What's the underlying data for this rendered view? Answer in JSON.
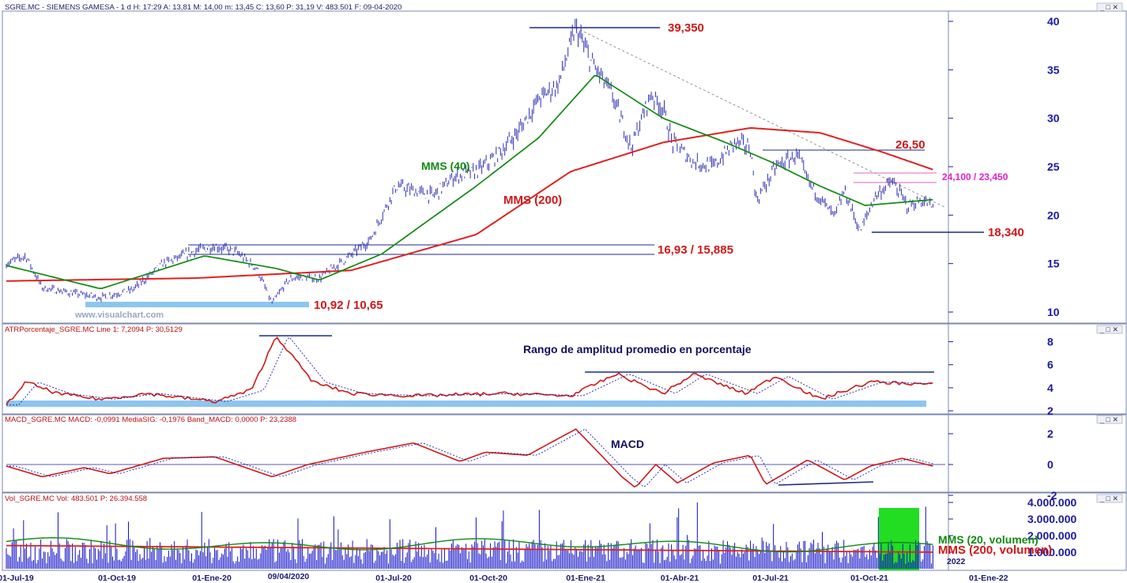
{
  "panels": {
    "price": {
      "header": "SGRE.MC - SIEMENS GAMESA - 1 d H: 17:29 A: 13,81 M: 14,00 m: 13,45 C: 13,60 P: 31,19 V: 483.501 F: 09-04-2020",
      "y_ticks": [
        "10",
        "15",
        "20",
        "25",
        "30",
        "35",
        "40"
      ]
    },
    "atr": {
      "header": "ATRPorcentaje_SGRE.MC Line 1: 7,2094 P: 30,5129",
      "y_ticks": [
        "2",
        "4",
        "6",
        "8"
      ],
      "annotation": "Rango de amplitud promedio en porcentaje"
    },
    "macd": {
      "header": "MACD_SGRE.MC MACD: -0,0991 MediaSIG: -0,1976 Band_MACD: 0,0000 P: 23,2388",
      "y_ticks": [
        "-2",
        "0",
        "2"
      ],
      "annotation": "MACD"
    },
    "vol": {
      "header": "Vol_SGRE.MC Vol: 483.501 P: 26.394.558",
      "y_ticks": [
        "1.000.000",
        "2.000.000",
        "3.000.000",
        "4.000.000"
      ],
      "legend_20": "MMS (20, volumen)",
      "legend_200": "MMS (200, volumen)"
    }
  },
  "annotations": {
    "high": "39,350",
    "resistance_1": "26,50",
    "resistance_2": "24,100 / 23,450",
    "support_low": "18,340",
    "breakout": "16,93 / 15,885",
    "base": "10,92 / 10,65",
    "mms40": "MMS (40)",
    "mms200": "MMS (200)",
    "watermark": "www.visualchart.com"
  },
  "x_axis": {
    "labels": [
      "01-Jul-19",
      "01-Oct-19",
      "01-Ene-20",
      "09/04/2020",
      "01-Jul-20",
      "01-Oct-20",
      "01-Ene-21",
      "01-Abr-21",
      "01-Jul-21",
      "01-Oct-21",
      "2022",
      "01-Ene-22"
    ]
  },
  "chart_data": {
    "type": "line",
    "x_range": [
      "2019-07-01",
      "2022-01-01"
    ],
    "price": {
      "ylim": [
        10,
        40
      ],
      "scale": "linear",
      "close_approx": [
        [
          "2019-07-01",
          15.0
        ],
        [
          "2019-07-20",
          15.8
        ],
        [
          "2019-08-05",
          12.5
        ],
        [
          "2019-09-01",
          12.0
        ],
        [
          "2019-10-01",
          11.5
        ],
        [
          "2019-11-01",
          12.3
        ],
        [
          "2019-12-01",
          15.0
        ],
        [
          "2020-01-01",
          16.3
        ],
        [
          "2020-01-20",
          16.8
        ],
        [
          "2020-02-10",
          16.2
        ],
        [
          "2020-03-01",
          14.5
        ],
        [
          "2020-03-16",
          10.9
        ],
        [
          "2020-04-01",
          13.3
        ],
        [
          "2020-04-09",
          13.6
        ],
        [
          "2020-05-01",
          13.5
        ],
        [
          "2020-06-01",
          15.9
        ],
        [
          "2020-06-20",
          17.5
        ],
        [
          "2020-07-01",
          20.0
        ],
        [
          "2020-07-15",
          23.0
        ],
        [
          "2020-08-01",
          22.5
        ],
        [
          "2020-08-20",
          22.0
        ],
        [
          "2020-09-10",
          24.0
        ],
        [
          "2020-10-01",
          24.5
        ],
        [
          "2020-10-20",
          26.0
        ],
        [
          "2020-11-10",
          28.5
        ],
        [
          "2020-12-01",
          32.0
        ],
        [
          "2020-12-20",
          33.5
        ],
        [
          "2021-01-06",
          39.35
        ],
        [
          "2021-01-20",
          36.0
        ],
        [
          "2021-02-10",
          32.5
        ],
        [
          "2021-03-01",
          27.0
        ],
        [
          "2021-03-20",
          32.5
        ],
        [
          "2021-04-01",
          31.0
        ],
        [
          "2021-04-10",
          27.5
        ],
        [
          "2021-05-01",
          25.5
        ],
        [
          "2021-05-20",
          25.0
        ],
        [
          "2021-06-10",
          27.5
        ],
        [
          "2021-06-25",
          27.0
        ],
        [
          "2021-07-01",
          21.5
        ],
        [
          "2021-07-20",
          25.0
        ],
        [
          "2021-08-10",
          26.2
        ],
        [
          "2021-08-20",
          23.5
        ],
        [
          "2021-09-15",
          19.8
        ],
        [
          "2021-09-25",
          22.5
        ],
        [
          "2021-10-10",
          18.34
        ],
        [
          "2021-10-25",
          22.0
        ],
        [
          "2021-11-10",
          23.5
        ],
        [
          "2021-11-25",
          21.0
        ],
        [
          "2021-12-10",
          21.5
        ],
        [
          "2021-12-20",
          20.8
        ]
      ],
      "mms40_approx": [
        [
          "2019-07-01",
          14.8
        ],
        [
          "2019-10-01",
          12.4
        ],
        [
          "2020-01-10",
          15.8
        ],
        [
          "2020-03-20",
          14.5
        ],
        [
          "2020-05-01",
          13.3
        ],
        [
          "2020-07-01",
          16.0
        ],
        [
          "2020-10-01",
          23.0
        ],
        [
          "2020-12-01",
          28.0
        ],
        [
          "2021-01-25",
          34.5
        ],
        [
          "2021-04-01",
          30.0
        ],
        [
          "2021-06-01",
          27.5
        ],
        [
          "2021-07-15",
          25.5
        ],
        [
          "2021-09-01",
          23.0
        ],
        [
          "2021-10-15",
          21.0
        ],
        [
          "2021-12-20",
          21.6
        ]
      ],
      "mms200_approx": [
        [
          "2019-07-01",
          13.2
        ],
        [
          "2020-01-01",
          13.5
        ],
        [
          "2020-06-01",
          14.3
        ],
        [
          "2020-10-01",
          18.0
        ],
        [
          "2021-01-01",
          24.5
        ],
        [
          "2021-04-01",
          27.5
        ],
        [
          "2021-06-25",
          29.0
        ],
        [
          "2021-09-01",
          28.5
        ],
        [
          "2021-11-01",
          26.5
        ],
        [
          "2021-12-20",
          24.7
        ]
      ]
    },
    "atr": {
      "ylim": [
        2,
        9
      ],
      "values_approx": [
        [
          "2019-07-01",
          2.5
        ],
        [
          "2019-07-20",
          4.5
        ],
        [
          "2019-08-20",
          3.5
        ],
        [
          "2019-10-01",
          3.0
        ],
        [
          "2019-11-15",
          3.5
        ],
        [
          "2020-01-20",
          2.8
        ],
        [
          "2020-02-25",
          3.8
        ],
        [
          "2020-03-20",
          8.5
        ],
        [
          "2020-04-25",
          4.5
        ],
        [
          "2020-06-01",
          3.5
        ],
        [
          "2020-08-01",
          3.3
        ],
        [
          "2020-11-01",
          3.5
        ],
        [
          "2021-01-01",
          3.3
        ],
        [
          "2021-02-15",
          5.2
        ],
        [
          "2021-04-01",
          3.5
        ],
        [
          "2021-05-01",
          5.2
        ],
        [
          "2021-06-20",
          3.5
        ],
        [
          "2021-07-20",
          5.0
        ],
        [
          "2021-09-01",
          3.0
        ],
        [
          "2021-10-20",
          4.5
        ],
        [
          "2021-12-20",
          4.3
        ]
      ]
    },
    "macd": {
      "ylim": [
        -2,
        2.5
      ],
      "macd_approx": [
        [
          "2019-07-01",
          -0.1
        ],
        [
          "2019-08-05",
          -0.8
        ],
        [
          "2019-09-15",
          -0.2
        ],
        [
          "2019-10-10",
          -0.6
        ],
        [
          "2019-12-01",
          0.4
        ],
        [
          "2020-01-20",
          0.5
        ],
        [
          "2020-03-16",
          -0.8
        ],
        [
          "2020-04-20",
          0.0
        ],
        [
          "2020-06-15",
          0.8
        ],
        [
          "2020-08-01",
          1.4
        ],
        [
          "2020-09-15",
          0.2
        ],
        [
          "2020-10-10",
          0.8
        ],
        [
          "2020-11-20",
          0.6
        ],
        [
          "2021-01-06",
          2.3
        ],
        [
          "2021-02-20",
          -0.8
        ],
        [
          "2021-03-05",
          -1.5
        ],
        [
          "2021-03-25",
          0.0
        ],
        [
          "2021-04-15",
          -1.2
        ],
        [
          "2021-05-20",
          0.1
        ],
        [
          "2021-06-25",
          0.6
        ],
        [
          "2021-07-10",
          -1.3
        ],
        [
          "2021-08-20",
          0.3
        ],
        [
          "2021-09-25",
          -1.0
        ],
        [
          "2021-10-20",
          -0.1
        ],
        [
          "2021-11-20",
          0.4
        ],
        [
          "2021-12-20",
          -0.1
        ]
      ]
    },
    "volume": {
      "ylim": [
        0,
        4000000
      ],
      "mms20_end_approx": 1400000,
      "mms200_end_approx": 1000000
    }
  },
  "colors": {
    "price_bars": "#1a1ab0",
    "mms40": "#0f8a0f",
    "mms200": "#e02020",
    "levels": "#1a2a8c",
    "support_band": "#8cc6f0",
    "highlight": "#22dd22",
    "axis_text": "#1a1aa0"
  }
}
